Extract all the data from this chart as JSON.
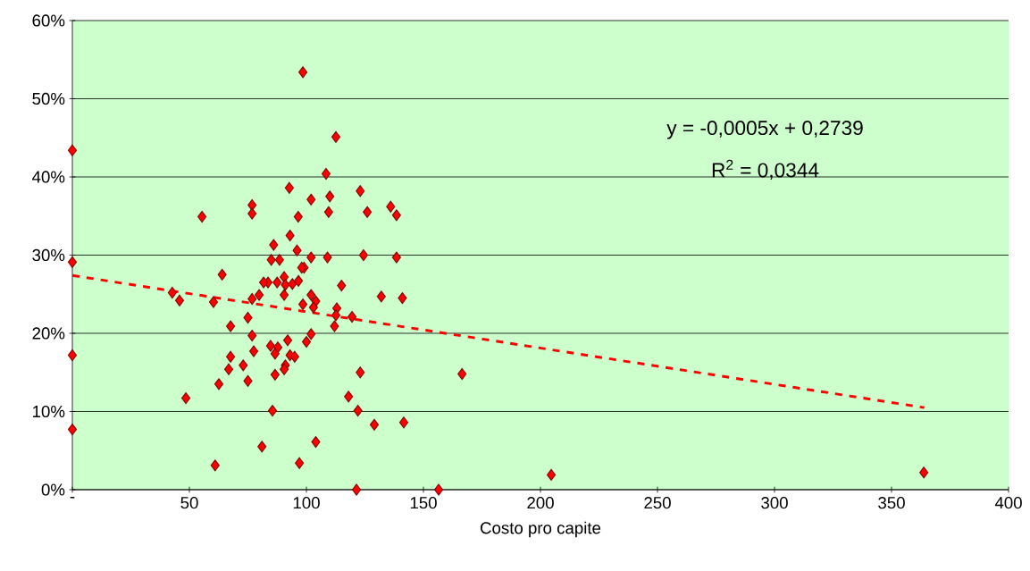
{
  "chart_data": {
    "type": "scatter",
    "xlabel": "Costo pro capite",
    "xlim": [
      0,
      400
    ],
    "ylim": [
      0,
      0.6
    ],
    "xticks": [
      {
        "value": 0,
        "label": "-"
      },
      50,
      100,
      150,
      200,
      250,
      300,
      350,
      400
    ],
    "yticks": [
      {
        "value": 0,
        "label": "0%"
      },
      {
        "value": 0.1,
        "label": "10%"
      },
      {
        "value": 0.2,
        "label": "20%"
      },
      {
        "value": 0.3,
        "label": "30%"
      },
      {
        "value": 0.4,
        "label": "40%"
      },
      {
        "value": 0.5,
        "label": "50%"
      },
      {
        "value": 0.6,
        "label": "60%"
      }
    ],
    "grid": "y",
    "marker": "diamond",
    "annotations": [
      "y = -0,0005x + 0,2739",
      "R$^{2}$ = 0,0344"
    ],
    "series": [
      {
        "color": "#ff0000",
        "x": [
          0,
          0,
          0,
          0,
          98.5,
          112.6,
          108.4,
          92.7,
          102,
          110,
          123,
          55.4,
          76.8,
          76.8,
          96.5,
          109.5,
          126,
          136,
          138.5,
          86,
          93,
          96,
          85,
          88.5,
          102,
          109,
          124.4,
          138.5,
          99,
          98,
          90.5,
          87.5,
          91,
          94,
          96.6,
          90.5,
          115,
          83.6,
          132,
          141,
          102,
          104,
          98.5,
          103,
          113,
          112.6,
          119.5,
          112,
          102,
          100,
          92,
          84.7,
          87.8,
          86.6,
          93,
          95,
          91,
          90.5,
          86.6,
          123,
          118,
          85.5,
          122,
          129,
          141.6,
          104,
          97,
          121.4,
          156.5,
          64,
          81.7,
          42.7,
          45.8,
          60.3,
          76.8,
          79.8,
          75,
          67.6,
          76.8,
          77.5,
          67.6,
          66.8,
          73,
          75,
          62.6,
          48.5,
          81,
          61,
          166.5,
          204.6,
          363.8
        ],
        "values": [
          0.434,
          0.291,
          0.172,
          0.077,
          0.534,
          0.451,
          0.404,
          0.386,
          0.371,
          0.375,
          0.382,
          0.349,
          0.364,
          0.353,
          0.349,
          0.355,
          0.355,
          0.362,
          0.351,
          0.313,
          0.325,
          0.306,
          0.294,
          0.294,
          0.297,
          0.297,
          0.3,
          0.297,
          0.284,
          0.284,
          0.272,
          0.265,
          0.262,
          0.263,
          0.267,
          0.249,
          0.261,
          0.265,
          0.247,
          0.245,
          0.249,
          0.241,
          0.237,
          0.233,
          0.232,
          0.223,
          0.221,
          0.209,
          0.199,
          0.189,
          0.191,
          0.184,
          0.182,
          0.174,
          0.172,
          0.17,
          0.159,
          0.154,
          0.147,
          0.15,
          0.119,
          0.101,
          0.101,
          0.083,
          0.086,
          0.061,
          0.034,
          0,
          0,
          0.275,
          0.265,
          0.252,
          0.242,
          0.24,
          0.244,
          0.249,
          0.22,
          0.209,
          0.197,
          0.177,
          0.17,
          0.154,
          0.159,
          0.139,
          0.135,
          0.117,
          0.055,
          0.031,
          0.148,
          0.019,
          0.022
        ]
      },
      {
        "type": "line",
        "color": "#ff0000",
        "marker": "none",
        "line_style": "dashed",
        "x": [
          0,
          364
        ],
        "values": [
          0.274,
          0.105
        ]
      }
    ]
  }
}
